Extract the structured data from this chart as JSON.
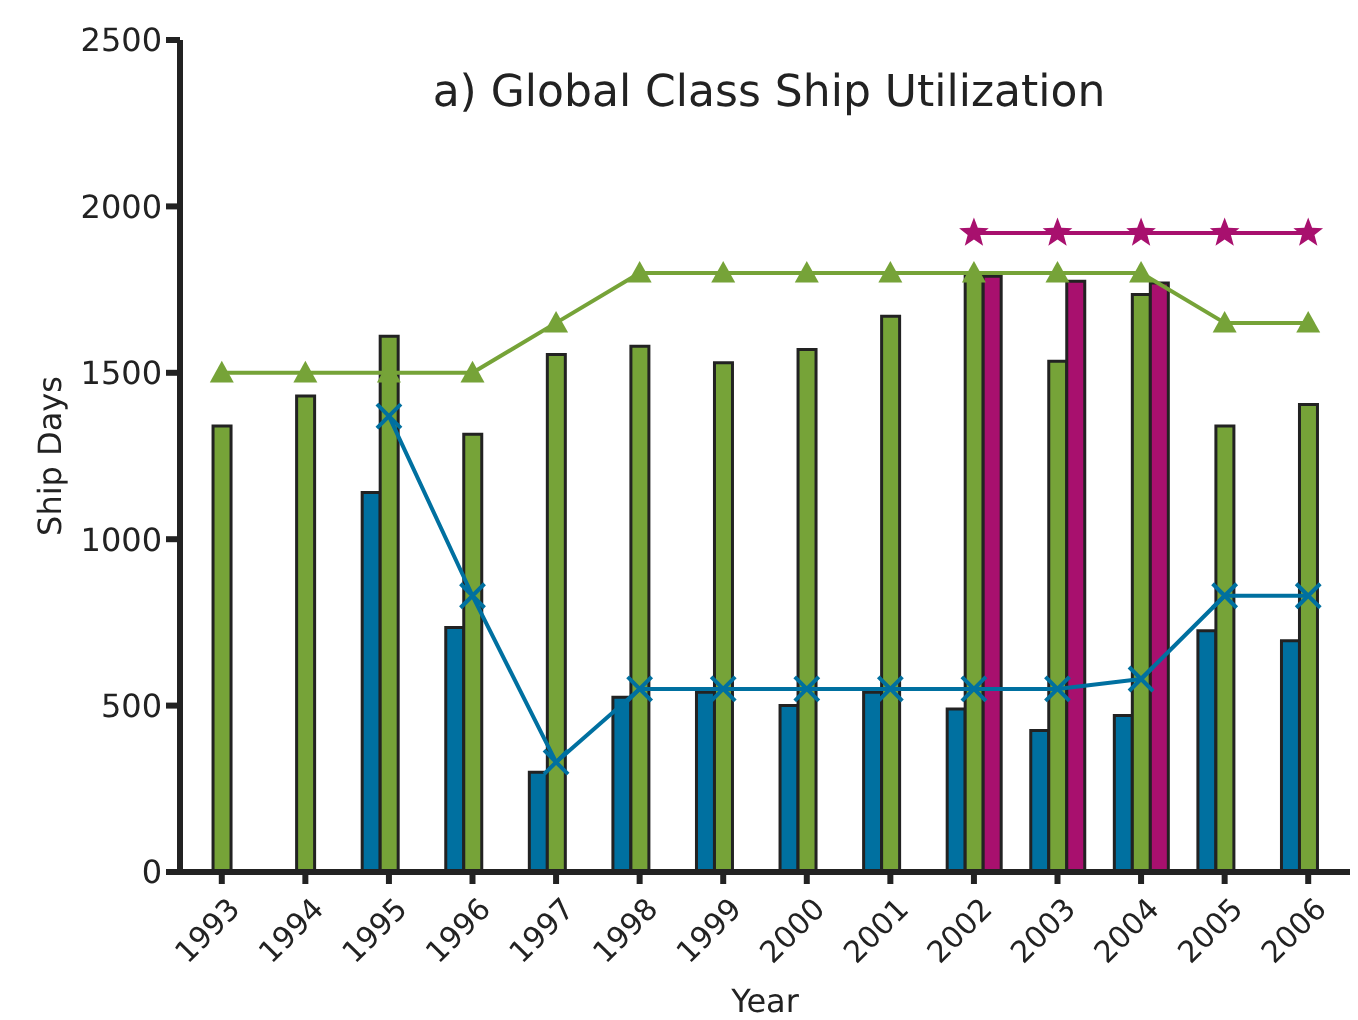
{
  "chart_data": {
    "type": "bar",
    "title": "a) Global Class Ship Utilization",
    "xlabel": "Year",
    "ylabel": "Ship Days",
    "categories": [
      "1993",
      "1994",
      "1995",
      "1996",
      "1997",
      "1998",
      "1999",
      "2000",
      "2001",
      "2002",
      "2003",
      "2004",
      "2005",
      "2006"
    ],
    "series": [
      {
        "color": "#0070a0",
        "values": [
          null,
          null,
          1140,
          735,
          300,
          525,
          540,
          500,
          540,
          490,
          425,
          470,
          725,
          695
        ]
      },
      {
        "color": "#76a338",
        "values": [
          1340,
          1430,
          1610,
          1315,
          1555,
          1580,
          1530,
          1570,
          1670,
          1790,
          1535,
          1735,
          1340,
          1405
        ]
      },
      {
        "color": "#a8106e",
        "values": [
          null,
          null,
          null,
          null,
          null,
          null,
          null,
          null,
          null,
          1790,
          1775,
          1770,
          null,
          null
        ]
      },
      {
        "type": "line",
        "color": "#76a338",
        "marker": "triangle",
        "values": [
          1500,
          1500,
          1500,
          1500,
          1650,
          1800,
          1800,
          1800,
          1800,
          1800,
          1800,
          1800,
          1650,
          1650
        ]
      },
      {
        "type": "line",
        "color": "#0070a0",
        "marker": "cross",
        "values": [
          null,
          null,
          1370,
          830,
          330,
          550,
          550,
          550,
          550,
          550,
          550,
          580,
          830,
          830
        ]
      },
      {
        "type": "line",
        "color": "#a8106e",
        "marker": "star",
        "values": [
          null,
          null,
          null,
          null,
          null,
          null,
          null,
          null,
          null,
          1920,
          1920,
          1920,
          1920,
          1920
        ]
      }
    ],
    "ylim": [
      0,
      2500
    ],
    "yticks": [
      0,
      500,
      1000,
      1500,
      2000,
      2500
    ],
    "grid": false,
    "legend": false
  }
}
